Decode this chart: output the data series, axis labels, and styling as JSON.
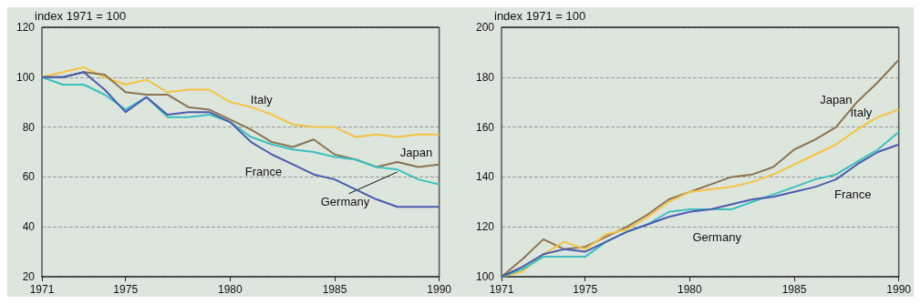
{
  "chart_data": [
    {
      "type": "line",
      "ylabel": "index 1971 = 100",
      "x": [
        1971,
        1972,
        1973,
        1974,
        1975,
        1976,
        1977,
        1978,
        1979,
        1980,
        1981,
        1982,
        1983,
        1984,
        1985,
        1986,
        1987,
        1988,
        1989,
        1990
      ],
      "xlim": [
        1971,
        1990
      ],
      "xticks": [
        1971,
        1975,
        1980,
        1985,
        1990
      ],
      "ylim": [
        20,
        120
      ],
      "yticks": [
        20,
        40,
        60,
        80,
        100,
        120
      ],
      "grid": "y",
      "legend": false,
      "marker": "none",
      "line_style": "solid",
      "series": [
        {
          "name": "Italy",
          "color": "#f5c242",
          "values": [
            100,
            102,
            104,
            100,
            97,
            99,
            94,
            95,
            95,
            90,
            88,
            85,
            81,
            80,
            80,
            76,
            77,
            76,
            77,
            77
          ]
        },
        {
          "name": "Japan",
          "color": "#8b7352",
          "values": [
            100,
            100,
            102,
            101,
            94,
            93,
            93,
            88,
            87,
            83,
            79,
            74,
            72,
            75,
            69,
            67,
            64,
            66,
            64,
            65
          ]
        },
        {
          "name": "Germany",
          "color": "#3cbfc0",
          "values": [
            100,
            97,
            97,
            93,
            87,
            92,
            84,
            84,
            85,
            82,
            76,
            73,
            71,
            70,
            68,
            67,
            64,
            63,
            59,
            57
          ]
        },
        {
          "name": "France",
          "color": "#4a5bb0",
          "values": [
            100,
            100,
            102,
            95,
            86,
            92,
            85,
            86,
            86,
            82,
            74,
            69,
            65,
            61,
            59,
            55,
            51,
            48,
            48,
            48
          ]
        }
      ]
    },
    {
      "type": "line",
      "ylabel": "index 1971 = 100",
      "x": [
        1971,
        1972,
        1973,
        1974,
        1975,
        1976,
        1977,
        1978,
        1979,
        1980,
        1981,
        1982,
        1983,
        1984,
        1985,
        1986,
        1987,
        1988,
        1989,
        1990
      ],
      "xlim": [
        1971,
        1990
      ],
      "xticks": [
        1971,
        1975,
        1980,
        1985,
        1990
      ],
      "ylim": [
        100,
        200
      ],
      "yticks": [
        100,
        120,
        140,
        160,
        180,
        200
      ],
      "grid": "y",
      "legend": false,
      "marker": "none",
      "line_style": "solid",
      "series": [
        {
          "name": "Japan",
          "color": "#8b7352",
          "values": [
            100,
            107,
            115,
            111,
            112,
            116,
            120,
            125,
            131,
            134,
            137,
            140,
            141,
            144,
            151,
            155,
            160,
            170,
            178,
            187
          ]
        },
        {
          "name": "Italy",
          "color": "#f5c242",
          "values": [
            100,
            102,
            109,
            114,
            111,
            117,
            119,
            124,
            130,
            134,
            135,
            136,
            138,
            141,
            145,
            149,
            153,
            159,
            164,
            167
          ]
        },
        {
          "name": "Germany",
          "color": "#3cbfc0",
          "values": [
            100,
            103,
            108,
            108,
            108,
            114,
            118,
            121,
            126,
            127,
            127,
            127,
            130,
            133,
            136,
            139,
            141,
            146,
            151,
            158
          ]
        },
        {
          "name": "France",
          "color": "#4a5bb0",
          "values": [
            100,
            104,
            109,
            111,
            110,
            114,
            118,
            121,
            124,
            126,
            127,
            129,
            131,
            132,
            134,
            136,
            139,
            145,
            150,
            153
          ]
        }
      ]
    }
  ]
}
